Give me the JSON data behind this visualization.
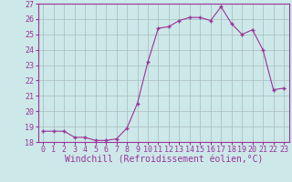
{
  "x": [
    0,
    1,
    2,
    3,
    4,
    5,
    6,
    7,
    8,
    9,
    10,
    11,
    12,
    13,
    14,
    15,
    16,
    17,
    18,
    19,
    20,
    21,
    22,
    23
  ],
  "y": [
    18.7,
    18.7,
    18.7,
    18.3,
    18.3,
    18.1,
    18.1,
    18.2,
    18.9,
    20.5,
    23.2,
    25.4,
    25.5,
    25.9,
    26.1,
    26.1,
    25.9,
    26.8,
    25.7,
    25.0,
    25.3,
    24.0,
    21.4,
    21.5
  ],
  "line_color": "#993399",
  "marker": "+",
  "marker_color": "#993399",
  "bg_color": "#cce8e8",
  "grid_color": "#aabbbb",
  "xlabel": "Windchill (Refroidissement éolien,°C)",
  "ylim": [
    18,
    27
  ],
  "xlim_min": -0.5,
  "xlim_max": 23.5,
  "yticks": [
    18,
    19,
    20,
    21,
    22,
    23,
    24,
    25,
    26,
    27
  ],
  "xticks": [
    0,
    1,
    2,
    3,
    4,
    5,
    6,
    7,
    8,
    9,
    10,
    11,
    12,
    13,
    14,
    15,
    16,
    17,
    18,
    19,
    20,
    21,
    22,
    23
  ],
  "line_color2": "#993399",
  "tick_color": "#993399",
  "label_fontsize": 7,
  "tick_fontsize": 6
}
